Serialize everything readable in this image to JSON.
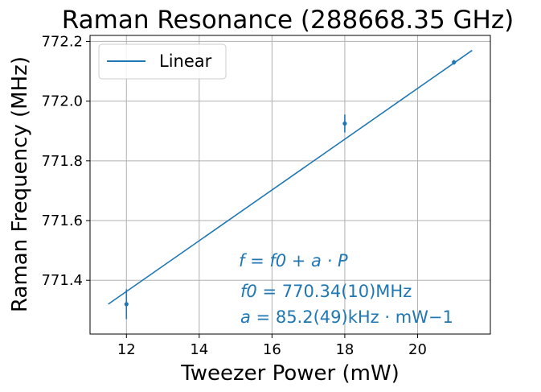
{
  "chart_data": {
    "type": "scatter",
    "title": "Raman Resonance (288668.35 GHz)",
    "xlabel": "Tweezer Power (mW)",
    "ylabel": "Raman Frequency (MHz)",
    "xlim": [
      11.0,
      22.0
    ],
    "ylim": [
      771.22,
      772.22
    ],
    "x_ticks": [
      12,
      14,
      16,
      18,
      20
    ],
    "x_tick_labels": [
      "12",
      "14",
      "16",
      "18",
      "20"
    ],
    "y_ticks": [
      771.4,
      771.6,
      771.8,
      772.0,
      772.2
    ],
    "y_tick_labels": [
      "771.4",
      "771.6",
      "771.8",
      "772.0",
      "772.2"
    ],
    "grid": true,
    "legend_position": "top-left",
    "color": "#1f77b4",
    "points": {
      "x": [
        12,
        18,
        21
      ],
      "y": [
        771.32,
        771.925,
        772.13
      ],
      "yerr": [
        0.05,
        0.03,
        0.008
      ]
    },
    "fit_line": {
      "name": "Linear",
      "x": [
        11.5,
        21.5
      ],
      "y": [
        771.32,
        772.17
      ]
    },
    "annotations": {
      "line1": {
        "lhs": "f",
        "rhs": "f0 + a · P"
      },
      "line2": {
        "lhs": "f0",
        "rhs": "770.34(10)MHz"
      },
      "line3": {
        "lhs": "a",
        "rhs": "85.2(49)kHz · mW−1"
      }
    }
  }
}
